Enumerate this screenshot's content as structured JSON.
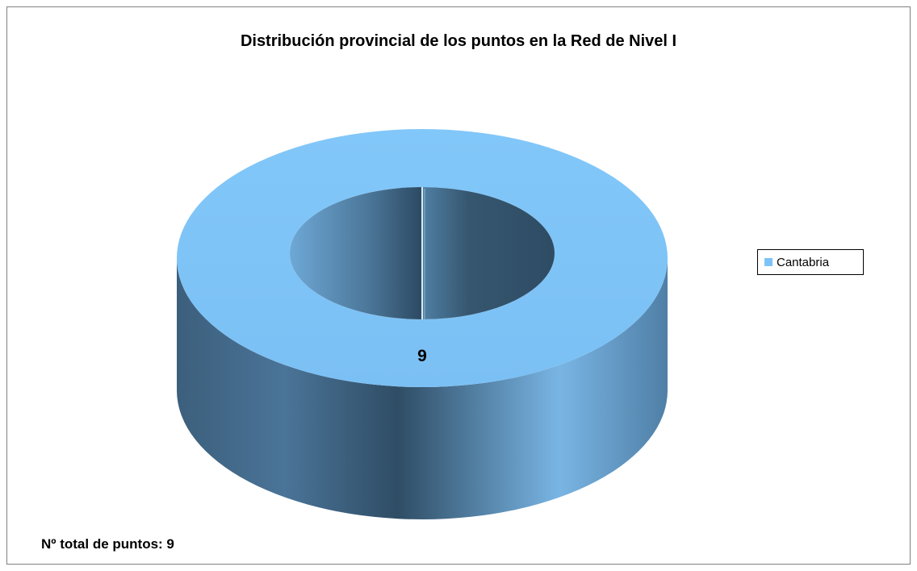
{
  "chart_data": {
    "type": "pie",
    "style": "3d-doughnut",
    "title": "Distribución provincial de los puntos en la Red de Nivel I",
    "categories": [
      "Cantabria"
    ],
    "values": [
      9
    ],
    "data_labels": [
      "9"
    ],
    "colors": {
      "top": "#7ec3f7",
      "side_dark": "#33536c",
      "side_light": "#74aedc"
    },
    "legend": {
      "position": "right",
      "entries": [
        {
          "name": "Cantabria",
          "color": "#7ec3f7"
        }
      ]
    }
  },
  "footer": {
    "total_label": "Nº total de puntos: 9"
  }
}
